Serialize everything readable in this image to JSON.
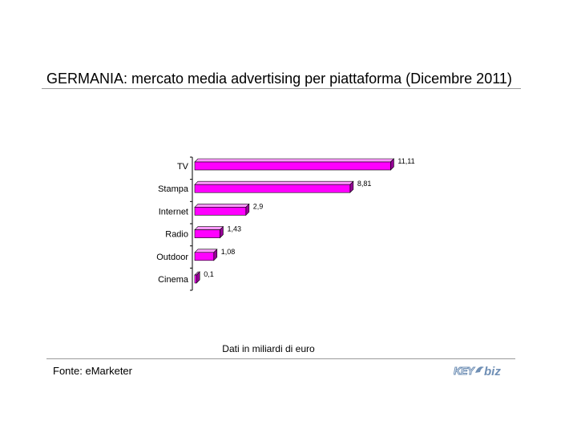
{
  "header": {
    "title": "GERMANIA: mercato media advertising per piattaforma (Dicembre 2011)"
  },
  "note": "Dati in miliardi di euro",
  "source": "Fonte: eMarketer",
  "logo": {
    "text": "KEY4biz",
    "icon": "key4biz-logo"
  },
  "colors": {
    "bar_front": "#ff00ff",
    "bar_top": "#ff99ff",
    "bar_side": "#990099",
    "axis": "#000000"
  },
  "chart_data": {
    "type": "bar",
    "orientation": "horizontal",
    "categories": [
      "TV",
      "Stampa",
      "Internet",
      "Radio",
      "Outdoor",
      "Cinema"
    ],
    "values": [
      11.11,
      8.81,
      2.9,
      1.43,
      1.08,
      0.1
    ],
    "value_labels": [
      "11,11",
      "8,81",
      "2,9",
      "1,43",
      "1,08",
      "0,1"
    ],
    "xlim": [
      0,
      11.5
    ],
    "grid": false,
    "legend": "none"
  }
}
